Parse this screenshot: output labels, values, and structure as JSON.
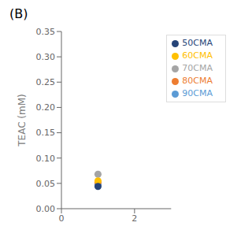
{
  "chart_data": {
    "type": "scatter",
    "title": "(B)",
    "ylabel": "TEAC (mM)",
    "xlim": [
      0,
      3
    ],
    "xticks": [
      0,
      2
    ],
    "ylim": [
      0,
      0.35
    ],
    "yticks": [
      {
        "value": 0,
        "label": "0.00"
      },
      0.05,
      {
        "value": 0.1,
        "label": "0.10"
      },
      0.15,
      {
        "value": 0.2,
        "label": "0.20"
      },
      0.25,
      {
        "value": 0.3,
        "label": "0.30"
      },
      0.35
    ],
    "series": [
      {
        "name": "90CMA",
        "color": "#5B9BD5",
        "x": [
          1
        ],
        "y": [
          0.048
        ]
      },
      {
        "name": "80CMA",
        "color": "#ED7D31",
        "x": [
          1
        ],
        "y": [
          0.052
        ]
      },
      {
        "name": "70CMA",
        "color": "#A5A5A5",
        "x": [
          1
        ],
        "y": [
          0.068
        ]
      },
      {
        "name": "60CMA",
        "color": "#FFC000",
        "x": [
          1
        ],
        "y": [
          0.055
        ]
      },
      {
        "name": "50CMA",
        "color": "#264478",
        "x": [
          1
        ],
        "y": [
          0.044
        ]
      }
    ],
    "legend": "upper right"
  }
}
